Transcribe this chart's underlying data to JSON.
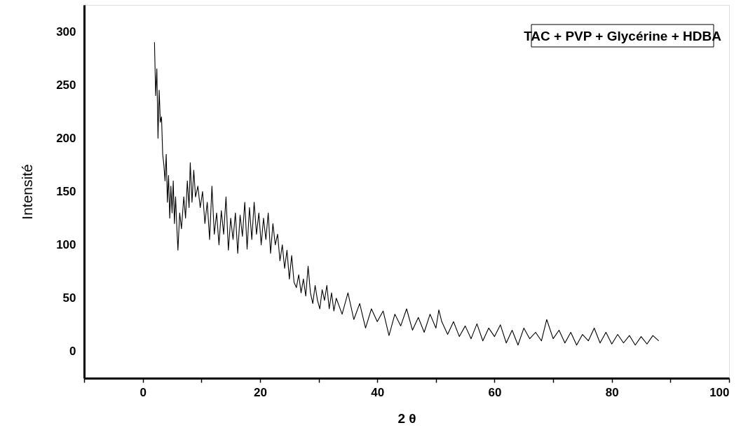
{
  "chart_data": {
    "type": "line",
    "xlabel": "2 θ",
    "ylabel": "Intensité",
    "annotations": [
      "TAC + PVP + Glycérine + HDBA"
    ],
    "xlim": [
      -10,
      100
    ],
    "xticks": [
      {
        "value": -10,
        "label": null
      },
      0,
      {
        "value": 10,
        "label": null
      },
      20,
      {
        "value": 30,
        "label": null
      },
      40,
      {
        "value": 50,
        "label": null
      },
      60,
      {
        "value": 70,
        "label": null
      },
      80,
      {
        "value": 90,
        "label": null
      },
      100
    ],
    "ylim": [
      -25,
      325
    ],
    "yticks": [
      0,
      50,
      100,
      150,
      200,
      250,
      300
    ],
    "grid": false,
    "marker": "none",
    "line_style": "solid",
    "series": [
      {
        "color": "#000000",
        "x": [
          2.0,
          2.2,
          2.4,
          2.6,
          2.8,
          3.0,
          3.2,
          3.4,
          3.6,
          3.8,
          4.0,
          4.2,
          4.4,
          4.6,
          4.8,
          5.0,
          5.2,
          5.4,
          5.6,
          5.8,
          6.0,
          6.3,
          6.6,
          7.0,
          7.3,
          7.6,
          7.9,
          8.1,
          8.4,
          8.7,
          9.0,
          9.4,
          9.8,
          10.2,
          10.6,
          11.0,
          11.4,
          11.8,
          12.2,
          12.6,
          13.0,
          13.4,
          13.8,
          14.2,
          14.6,
          15.0,
          15.4,
          15.8,
          16.2,
          16.6,
          17.0,
          17.4,
          17.8,
          18.2,
          18.6,
          19.0,
          19.4,
          19.8,
          20.2,
          20.6,
          21.0,
          21.4,
          21.8,
          22.2,
          22.6,
          23.0,
          23.4,
          23.8,
          24.2,
          24.6,
          25.0,
          25.4,
          25.8,
          26.2,
          26.6,
          27.0,
          27.4,
          27.8,
          28.2,
          28.6,
          29.0,
          29.4,
          29.8,
          30.2,
          30.6,
          31.0,
          31.4,
          31.8,
          32.2,
          32.6,
          33.0,
          34,
          35,
          36,
          37,
          38,
          39,
          40,
          41,
          42,
          43,
          44,
          45,
          46,
          47,
          48,
          49,
          50,
          50.5,
          51,
          52,
          53,
          54,
          55,
          56,
          57,
          58,
          59,
          60,
          61,
          62,
          63,
          64,
          65,
          66,
          67,
          68,
          68.9,
          70,
          71,
          72,
          73,
          74,
          75,
          76,
          77,
          78,
          79,
          80,
          81,
          82,
          83,
          84,
          85,
          86,
          87,
          88
        ],
        "values": [
          290,
          240,
          265,
          200,
          245,
          215,
          220,
          185,
          175,
          160,
          185,
          140,
          165,
          125,
          155,
          130,
          160,
          120,
          145,
          118,
          95,
          130,
          115,
          145,
          125,
          160,
          135,
          177,
          140,
          170,
          145,
          155,
          135,
          150,
          120,
          140,
          105,
          155,
          110,
          130,
          100,
          132,
          110,
          145,
          95,
          125,
          105,
          130,
          92,
          128,
          108,
          140,
          96,
          135,
          105,
          140,
          110,
          130,
          100,
          125,
          105,
          130,
          92,
          120,
          100,
          110,
          85,
          100,
          78,
          95,
          68,
          90,
          65,
          60,
          72,
          55,
          68,
          52,
          80,
          55,
          45,
          62,
          48,
          40,
          58,
          48,
          62,
          40,
          55,
          38,
          50,
          35,
          55,
          30,
          45,
          22,
          40,
          28,
          38,
          15,
          35,
          24,
          40,
          20,
          32,
          18,
          35,
          22,
          39,
          28,
          16,
          28,
          14,
          24,
          12,
          26,
          10,
          22,
          14,
          25,
          8,
          20,
          6,
          22,
          12,
          18,
          10,
          30,
          12,
          20,
          8,
          18,
          6,
          16,
          10,
          22,
          8,
          18,
          7,
          16,
          8,
          15,
          6,
          14,
          7,
          15,
          10
        ]
      }
    ]
  }
}
